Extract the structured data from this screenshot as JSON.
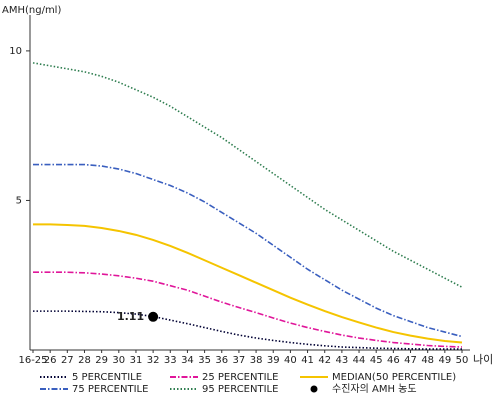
{
  "chart_data": {
    "type": "line",
    "y_label": "AMH(ng/ml)",
    "x_label": "나이",
    "categories": [
      "16-25",
      "26",
      "27",
      "28",
      "29",
      "30",
      "31",
      "32",
      "33",
      "34",
      "35",
      "36",
      "37",
      "38",
      "39",
      "40",
      "41",
      "42",
      "43",
      "44",
      "45",
      "46",
      "47",
      "48",
      "49",
      "50"
    ],
    "ylim": [
      0,
      11.2
    ],
    "yticks": [
      5,
      10
    ],
    "series": [
      {
        "name": "5 PERCENTILE",
        "color": "#000033",
        "style": "dotted",
        "values": [
          1.3,
          1.3,
          1.3,
          1.29,
          1.28,
          1.25,
          1.2,
          1.12,
          1.0,
          0.88,
          0.75,
          0.62,
          0.5,
          0.4,
          0.32,
          0.25,
          0.19,
          0.14,
          0.1,
          0.08,
          0.06,
          0.05,
          0.04,
          0.03,
          0.03,
          0.03
        ]
      },
      {
        "name": "25 PERCENTILE",
        "color": "#e0169a",
        "style": "dashdot",
        "values": [
          2.6,
          2.6,
          2.6,
          2.58,
          2.54,
          2.48,
          2.4,
          2.3,
          2.15,
          2.0,
          1.8,
          1.6,
          1.42,
          1.25,
          1.07,
          0.9,
          0.75,
          0.62,
          0.5,
          0.4,
          0.32,
          0.25,
          0.2,
          0.15,
          0.12,
          0.1
        ]
      },
      {
        "name": "MEDIAN(50 PERCENTILE)",
        "color": "#f5c400",
        "style": "solid",
        "values": [
          4.2,
          4.2,
          4.18,
          4.15,
          4.08,
          3.98,
          3.85,
          3.68,
          3.48,
          3.25,
          3.0,
          2.75,
          2.5,
          2.25,
          2.0,
          1.75,
          1.52,
          1.3,
          1.1,
          0.92,
          0.75,
          0.6,
          0.48,
          0.38,
          0.3,
          0.25
        ]
      },
      {
        "name": "75 PERCENTILE",
        "color": "#3a5fbf",
        "style": "dashdot",
        "values": [
          6.2,
          6.2,
          6.2,
          6.2,
          6.15,
          6.05,
          5.9,
          5.7,
          5.5,
          5.25,
          4.95,
          4.6,
          4.25,
          3.9,
          3.5,
          3.1,
          2.7,
          2.35,
          2.0,
          1.7,
          1.4,
          1.15,
          0.95,
          0.75,
          0.6,
          0.45
        ]
      },
      {
        "name": "95 PERCENTILE",
        "color": "#2e7d4f",
        "style": "dotted",
        "values": [
          9.6,
          9.5,
          9.4,
          9.3,
          9.15,
          8.95,
          8.7,
          8.45,
          8.15,
          7.8,
          7.45,
          7.1,
          6.7,
          6.3,
          5.9,
          5.5,
          5.1,
          4.7,
          4.35,
          4.0,
          3.65,
          3.3,
          3.0,
          2.7,
          2.4,
          2.1
        ]
      }
    ],
    "marker": {
      "name": "수진자의 AMH 농도",
      "category": "32",
      "value": 1.11,
      "color": "#000000"
    }
  }
}
